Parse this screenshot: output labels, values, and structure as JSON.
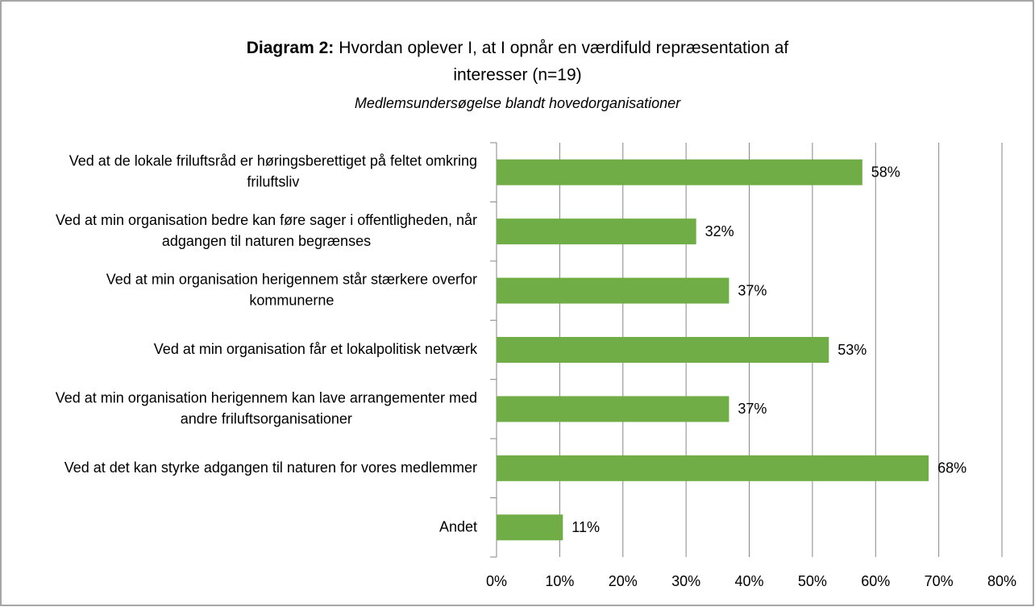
{
  "chart_data": {
    "type": "bar",
    "orientation": "horizontal",
    "title": {
      "prefix": "Diagram 2:",
      "lines": [
        "Hvordan oplever I, at I opnår en værdifuld repræsentation af",
        "interesser (n=19)"
      ]
    },
    "subtitle": "Medlemsundersøgelse blandt hovedorganisationer",
    "categories": [
      "Ved at de lokale friluftsråd er høringsberettiget på feltet omkring friluftsliv",
      "Ved at min organisation bedre kan føre sager i offentligheden, når adgangen til naturen begrænses",
      "Ved at min organisation herigennem står stærkere overfor kommunerne",
      "Ved at min organisation får et lokalpolitisk netværk",
      "Ved at min organisation herigennem kan lave arrangementer med andre friluftsorganisationer",
      "Ved at det kan styrke adgangen til naturen for vores medlemmer",
      "Andet"
    ],
    "values": [
      57.9,
      31.6,
      36.8,
      52.6,
      36.8,
      68.4,
      10.5
    ],
    "value_labels": [
      "58%",
      "32%",
      "37%",
      "53%",
      "37%",
      "68%",
      "11%"
    ],
    "color": "#70ad47",
    "xlim": [
      0,
      80
    ],
    "xticks": [
      {
        "value": 0,
        "label": "0%"
      },
      {
        "value": 10,
        "label": "10%"
      },
      {
        "value": 20,
        "label": "20%"
      },
      {
        "value": 30,
        "label": "30%"
      },
      {
        "value": 40,
        "label": "40%"
      },
      {
        "value": 50,
        "label": "50%"
      },
      {
        "value": 60,
        "label": "60%"
      },
      {
        "value": 70,
        "label": "70%"
      },
      {
        "value": 80,
        "label": "80%"
      }
    ],
    "grid": true
  }
}
